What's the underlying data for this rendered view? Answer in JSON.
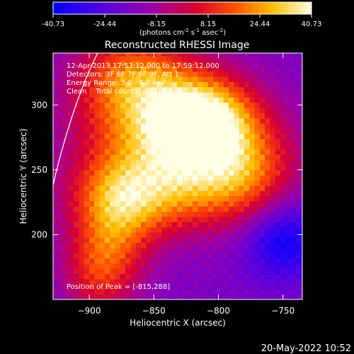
{
  "chart_data": {
    "type": "heatmap",
    "title": "Reconstructed RHESSI Image",
    "xlabel": "Heliocentric X (arcsec)",
    "ylabel": "Heliocentric Y (arcsec)",
    "xlim": [
      -928,
      -735
    ],
    "ylim": [
      150,
      340
    ],
    "x_ticks": [
      -900,
      -850,
      -800,
      -750
    ],
    "y_ticks": [
      200,
      250,
      300
    ],
    "colorbar": {
      "ticks": [
        "-40.73",
        "-24.44",
        "-8.15",
        "8.15",
        "24.44",
        "40.73"
      ],
      "range": [
        -40.73,
        40.73
      ],
      "units_html": "(photons cm<tspan dy=\"-4\" font-size=\"7\">-2</tspan><tspan dy=\"4\"> s</tspan><tspan dy=\"-4\" font-size=\"7\">-1</tspan><tspan dy=\"4\"> asec</tspan><tspan dy=\"-4\" font-size=\"7\">-2</tspan><tspan dy=\"4\">)</tspan>"
    },
    "annotations": [
      "12-Apr-2013 17:53:12.000 to 17:59:12.000",
      "Detectors: 3F 6F 7F 8F 9F, Att 1",
      "Energy Range: 3.0 - 6.0 keV",
      "Clean    Total counts: 4.65E+04"
    ],
    "peak_label": "Position of Peak = [-815,288]",
    "peak": [
      -815,
      288
    ],
    "footer_date": "20-May-2022 10:52"
  }
}
